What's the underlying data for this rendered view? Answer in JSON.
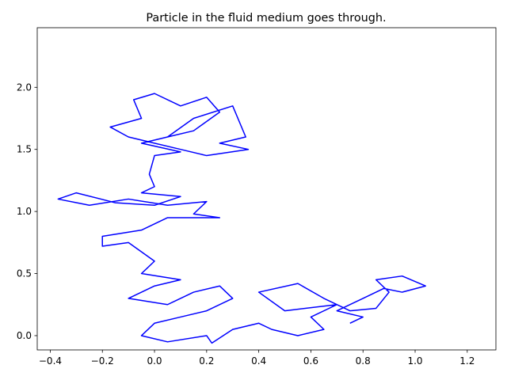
{
  "chart_data": {
    "type": "line",
    "title": "Particle in the fluid medium goes through.",
    "x": [
      0.05,
      0.15,
      0.3,
      0.35,
      0.25,
      0.36,
      0.2,
      0.1,
      0.0,
      -0.1,
      -0.17,
      -0.05,
      -0.08,
      0.0,
      0.1,
      0.2,
      0.25,
      0.15,
      0.05,
      -0.05,
      0.1,
      0.0,
      -0.02,
      0.0,
      -0.05,
      0.1,
      0.0,
      -0.15,
      -0.3,
      -0.37,
      -0.25,
      -0.1,
      0.05,
      0.2,
      0.15,
      0.25,
      0.05,
      -0.05,
      -0.2,
      -0.2,
      -0.1,
      0.0,
      -0.05,
      0.1,
      0.0,
      -0.1,
      0.05,
      0.15,
      0.25,
      0.3,
      0.2,
      0.1,
      0.0,
      -0.05,
      0.05,
      0.2,
      0.22,
      0.3,
      0.4,
      0.45,
      0.55,
      0.65,
      0.6,
      0.7,
      0.5,
      0.4,
      0.55,
      0.65,
      0.75,
      0.85,
      0.9,
      0.85,
      0.95,
      1.04,
      0.95,
      0.88,
      0.8,
      0.7,
      0.8,
      0.75
    ],
    "series": [
      {
        "color": "#0000ff",
        "values": [
          1.6,
          1.75,
          1.85,
          1.6,
          1.55,
          1.5,
          1.45,
          1.5,
          1.55,
          1.6,
          1.68,
          1.75,
          1.9,
          1.95,
          1.85,
          1.92,
          1.8,
          1.65,
          1.6,
          1.55,
          1.48,
          1.45,
          1.3,
          1.2,
          1.15,
          1.12,
          1.05,
          1.07,
          1.15,
          1.1,
          1.05,
          1.1,
          1.05,
          1.08,
          0.98,
          0.95,
          0.95,
          0.85,
          0.8,
          0.72,
          0.75,
          0.6,
          0.5,
          0.45,
          0.4,
          0.3,
          0.25,
          0.35,
          0.4,
          0.3,
          0.2,
          0.15,
          0.1,
          0.0,
          -0.05,
          0.0,
          -0.06,
          0.05,
          0.1,
          0.05,
          0.0,
          0.05,
          0.15,
          0.25,
          0.2,
          0.35,
          0.42,
          0.3,
          0.2,
          0.22,
          0.35,
          0.45,
          0.48,
          0.4,
          0.35,
          0.38,
          0.3,
          0.2,
          0.15,
          0.1
        ]
      }
    ],
    "xlim": [
      -0.45,
      1.31
    ],
    "ylim": [
      -0.115,
      2.48
    ],
    "xticks": [
      {
        "value": -0.4,
        "label": "−0.4"
      },
      {
        "value": -0.2,
        "label": "−0.2"
      },
      {
        "value": 0,
        "label": "0.0"
      },
      0.2,
      0.4,
      0.6,
      0.8,
      {
        "value": 1,
        "label": "1.0"
      },
      1.2
    ],
    "yticks": [
      {
        "value": 0,
        "label": "0.0"
      },
      0.5,
      {
        "value": 1,
        "label": "1.0"
      },
      1.5,
      {
        "value": 2,
        "label": "2.0"
      }
    ]
  }
}
